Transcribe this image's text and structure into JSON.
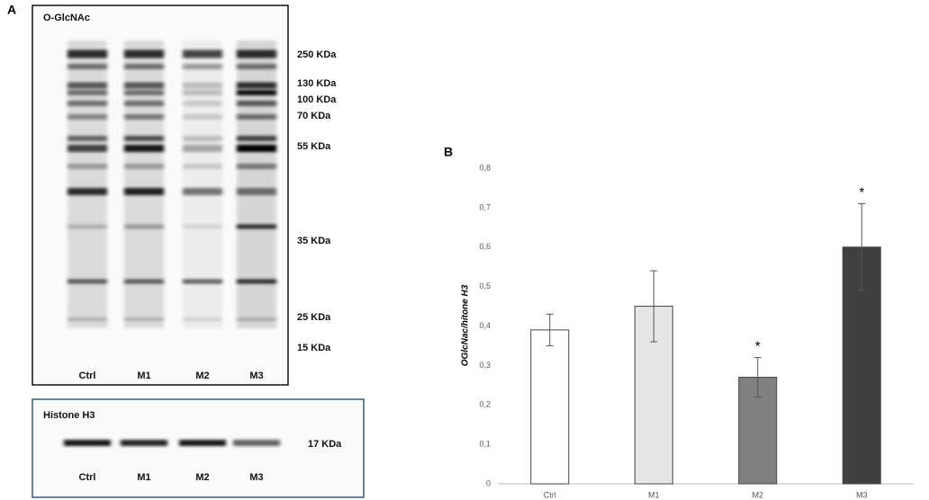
{
  "panel_a": {
    "label": "A",
    "blot_title": "O-GlcNAc",
    "markers": [
      "250 KDa",
      "130 KDa",
      "100 KDa",
      "70 KDa",
      "55 KDa",
      "35 KDa",
      "25 KDa",
      "15 KDa"
    ],
    "lanes": [
      "Ctrl",
      "M1",
      "M2",
      "M3"
    ],
    "loading_title": "Histone H3",
    "loading_marker": "17 KDa",
    "loading_lanes": [
      "Ctrl",
      "M1",
      "M2",
      "M3"
    ]
  },
  "chart_data": {
    "type": "bar",
    "panel_label": "B",
    "y_label": "OGlcNac/hitone H3",
    "categories": [
      "Ctrl",
      "M1",
      "M2",
      "M3"
    ],
    "values": [
      0.39,
      0.45,
      0.27,
      0.6
    ],
    "errors": [
      0.04,
      0.09,
      0.05,
      0.11
    ],
    "colors": [
      "#ffffff",
      "#e6e6e6",
      "#808080",
      "#404040"
    ],
    "significance": [
      null,
      null,
      "*",
      "*"
    ],
    "ylim": [
      0,
      0.8
    ],
    "yticks": [
      0,
      {
        "value": 0.1,
        "label": "0,1"
      },
      {
        "value": 0.2,
        "label": "0,2"
      },
      {
        "value": 0.3,
        "label": "0,3"
      },
      {
        "value": 0.4,
        "label": "0,4"
      },
      {
        "value": 0.5,
        "label": "0,5"
      },
      {
        "value": 0.6,
        "label": "0,6"
      },
      {
        "value": 0.7,
        "label": "0,7"
      },
      {
        "value": 0.8,
        "label": "0,8"
      }
    ],
    "grid": false
  }
}
